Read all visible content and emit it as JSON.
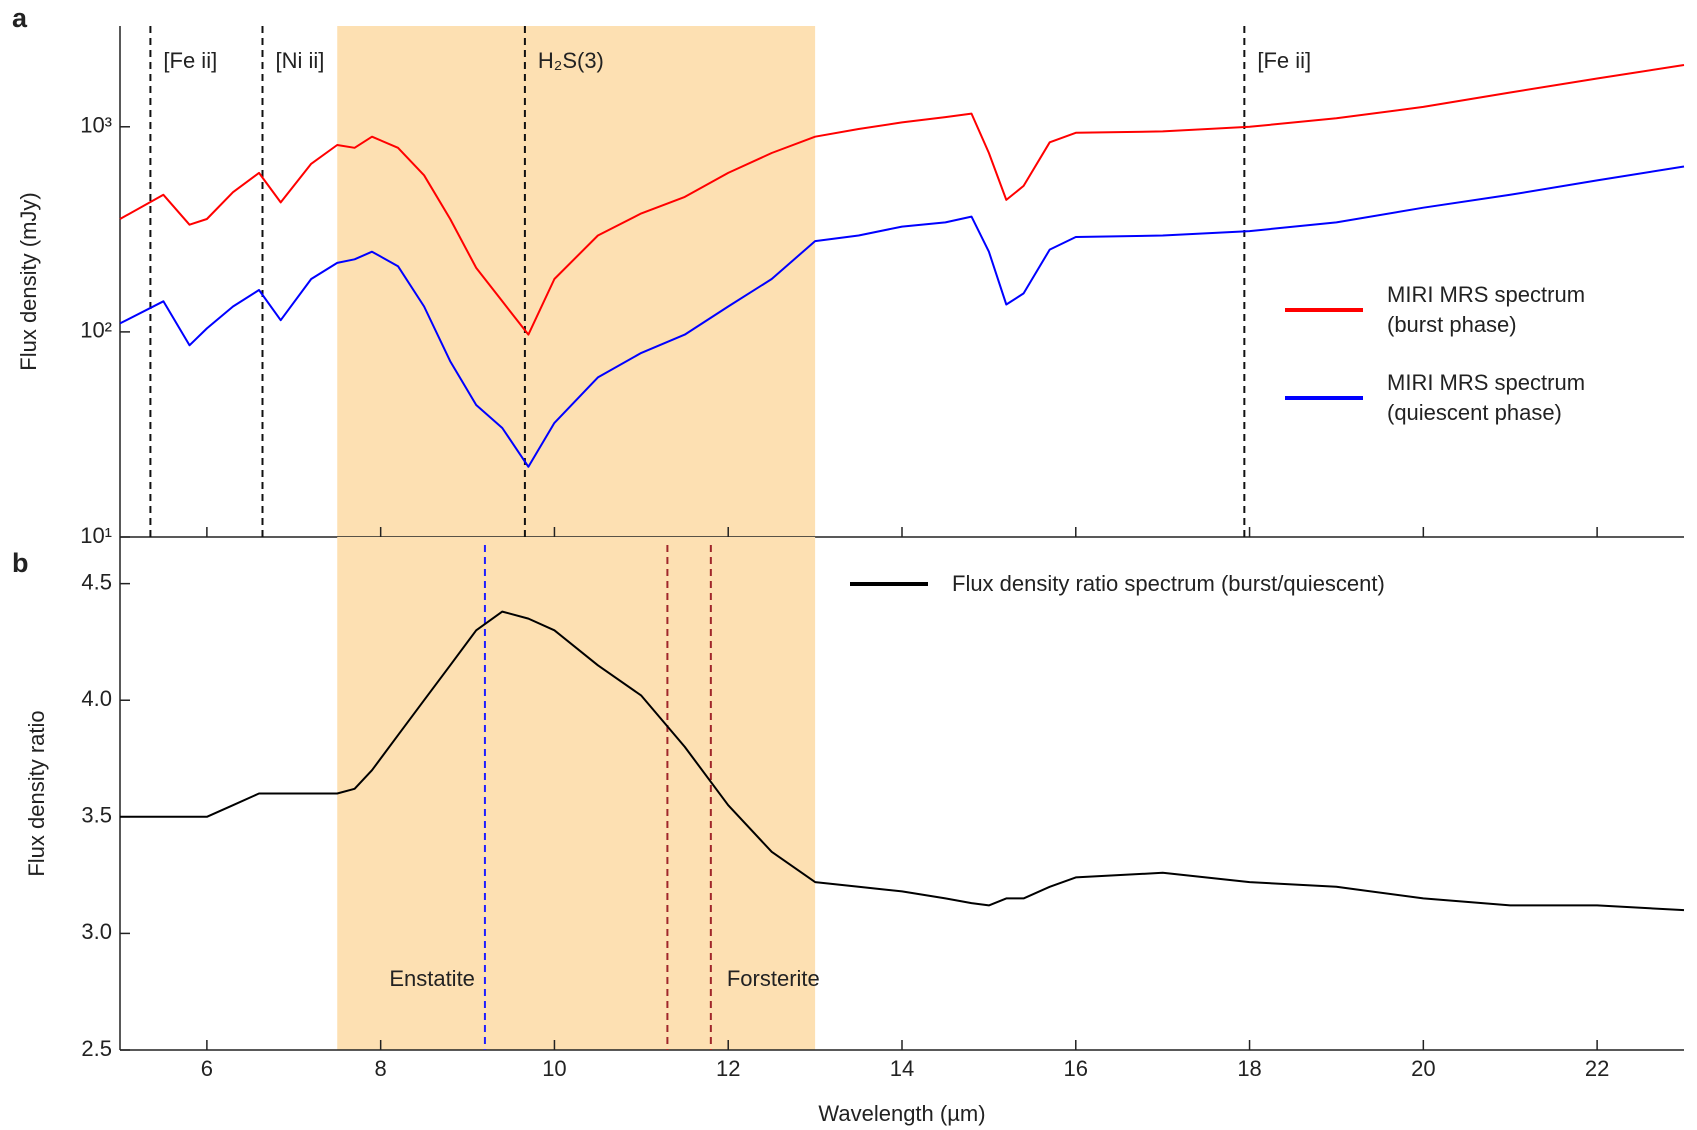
{
  "chart_data": [
    {
      "type": "line",
      "panel_label": "a",
      "y_label": "Flux density (mJy)",
      "log_y": true,
      "xlim": [
        5,
        23
      ],
      "ylim": [
        10,
        3100
      ],
      "yticks": [
        {
          "value": 10,
          "label": "10¹"
        },
        {
          "value": 100,
          "label": "10²"
        },
        {
          "value": 1000,
          "label": "10³"
        }
      ],
      "highlight": [
        7.5,
        13
      ],
      "highlight_color": "#fde0b2",
      "annotations": [
        {
          "x": 5.35,
          "label": "[Fe ii]"
        },
        {
          "x": 6.64,
          "label": "[Ni ii]"
        },
        {
          "x": 9.66,
          "label": "H₂S(3)"
        },
        {
          "x": 17.94,
          "label": "[Fe ii]"
        }
      ],
      "x": [
        5,
        5.5,
        5.8,
        6,
        6.3,
        6.6,
        6.85,
        7.2,
        7.5,
        7.7,
        7.9,
        8.2,
        8.5,
        8.8,
        9.1,
        9.4,
        9.7,
        10,
        10.5,
        11,
        11.5,
        12,
        12.5,
        13,
        13.5,
        14,
        14.5,
        14.8,
        15,
        15.2,
        15.4,
        15.7,
        16,
        17,
        18,
        19,
        20,
        21,
        22,
        23
      ],
      "series": [
        {
          "name": "MIRI MRS spectrum (burst phase)",
          "color": "#ff0000",
          "values": [
            355,
            466,
            333,
            355,
            480,
            596,
            428,
            660,
            815,
            790,
            895,
            790,
            580,
            355,
            205,
            141,
            97,
            181,
            295,
            378,
            455,
            596,
            745,
            895,
            975,
            1050,
            1115,
            1160,
            745,
            440,
            515,
            840,
            935,
            950,
            1000,
            1100,
            1250,
            1470,
            1720,
            2000
          ]
        },
        {
          "name": "MIRI MRS spectrum (quiescent phase)",
          "color": "#0000ff",
          "values": [
            110,
            141,
            86,
            104,
            133,
            160,
            114,
            181,
            217,
            226,
            246,
            209,
            133,
            72,
            44,
            34,
            22,
            36,
            60,
            79,
            97,
            133,
            181,
            277,
            295,
            326,
            342,
            365,
            246,
            136,
            154,
            252,
            290,
            295,
            310,
            342,
            403,
            466,
            548,
            640
          ]
        }
      ]
    },
    {
      "type": "line",
      "panel_label": "b",
      "y_label": "Flux density ratio",
      "x_label": "Wavelength (µm)",
      "xlim": [
        5,
        23
      ],
      "ylim": [
        2.5,
        4.7
      ],
      "xticks": [
        6,
        8,
        10,
        12,
        14,
        16,
        18,
        20,
        22
      ],
      "yticks": [
        2.5,
        {
          "value": 3,
          "label": "3.0"
        },
        3.5,
        {
          "value": 4,
          "label": "4.0"
        },
        4.5
      ],
      "highlight": [
        7.5,
        13
      ],
      "highlight_color": "#fde0b2",
      "annotations": [
        {
          "x": [
            9.2
          ],
          "label": "Enstatite",
          "color": "#1f1fff"
        },
        {
          "x": [
            11.3,
            11.8
          ],
          "label": "Forsterite",
          "color": "#a0262a"
        }
      ],
      "x": [
        5,
        5.5,
        5.8,
        6,
        6.3,
        6.6,
        6.85,
        7.2,
        7.5,
        7.7,
        7.9,
        8.2,
        8.5,
        8.8,
        9.1,
        9.4,
        9.7,
        10,
        10.5,
        11,
        11.5,
        12,
        12.5,
        13,
        13.5,
        14,
        14.5,
        14.8,
        15,
        15.2,
        15.4,
        15.7,
        16,
        17,
        18,
        19,
        20,
        21,
        22,
        23
      ],
      "series": [
        {
          "name": "Flux density ratio spectrum (burst/quiescent)",
          "color": "#000000",
          "values": [
            3.5,
            3.5,
            3.5,
            3.5,
            3.55,
            3.6,
            3.6,
            3.6,
            3.6,
            3.62,
            3.7,
            3.85,
            4.0,
            4.15,
            4.3,
            4.38,
            4.35,
            4.3,
            4.15,
            4.02,
            3.8,
            3.55,
            3.35,
            3.22,
            3.2,
            3.18,
            3.15,
            3.13,
            3.12,
            3.15,
            3.15,
            3.2,
            3.24,
            3.26,
            3.22,
            3.2,
            3.15,
            3.12,
            3.12,
            3.1
          ]
        }
      ]
    }
  ]
}
